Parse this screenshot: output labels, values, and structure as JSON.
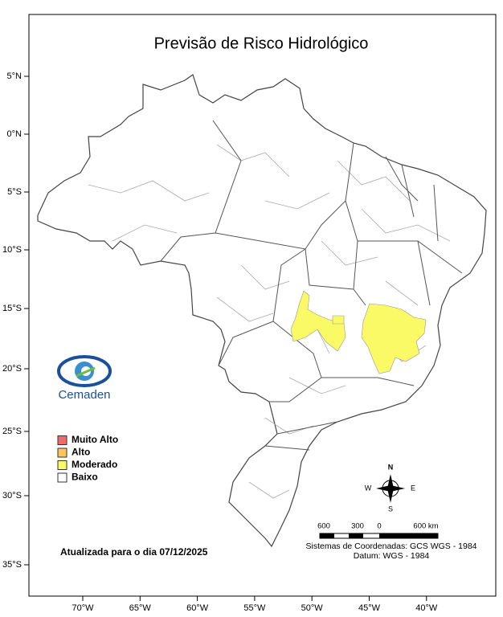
{
  "title": "Previsão de Risco Hidrológico",
  "latitude_labels": [
    "5°N",
    "0°N",
    "5°S",
    "10°S",
    "15°S",
    "20°S",
    "25°S",
    "30°S",
    "35°S"
  ],
  "longitude_labels": [
    "70°W",
    "65°W",
    "60°W",
    "55°W",
    "50°W",
    "45°W",
    "40°W"
  ],
  "logo": {
    "text": "Cemaden"
  },
  "legend": [
    {
      "label": "Muito Alto",
      "color": "#f26b6b"
    },
    {
      "label": "Alto",
      "color": "#fcc45c"
    },
    {
      "label": "Moderado",
      "color": "#fafa66"
    },
    {
      "label": "Baixo",
      "color": "#ffffff"
    }
  ],
  "updated": "Atualizada para o dia 07/12/2025",
  "compass": {
    "north": "N",
    "south": "S",
    "east": "E",
    "west": "W"
  },
  "scale": {
    "labels": [
      "600",
      "300",
      "0",
      "600 km"
    ]
  },
  "crs": [
    "Sistemas de Coordenadas: GCS WGS - 1984",
    "Datum: WGS - 1984"
  ]
}
